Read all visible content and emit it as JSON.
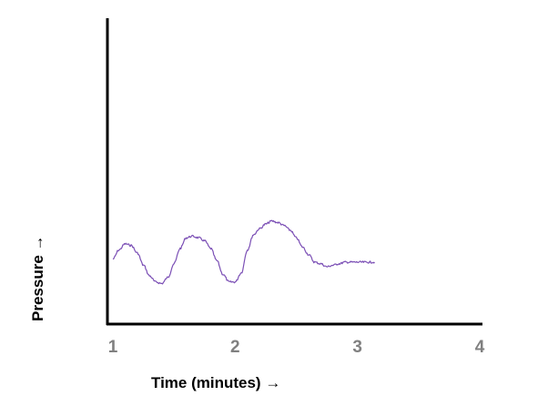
{
  "chart_data": {
    "type": "line",
    "xlabel": "Time (minutes) →",
    "ylabel": "Pressure  →",
    "xlim": [
      1,
      4
    ],
    "ylim": [
      0,
      10
    ],
    "x_ticks": [
      "1",
      "2",
      "3",
      "4"
    ],
    "y_ticks": [],
    "grid": false,
    "colors": {
      "series": "#7b4fb5",
      "axis": "#000000",
      "tick_label": "#808080",
      "axis_label": "#000000"
    },
    "series": [
      {
        "x": [
          1.0,
          1.05,
          1.1,
          1.15,
          1.2,
          1.25,
          1.3,
          1.35,
          1.4,
          1.45,
          1.5,
          1.55,
          1.6,
          1.65,
          1.7,
          1.75,
          1.8,
          1.85,
          1.9,
          1.95,
          2.0,
          2.05,
          2.1,
          2.15,
          2.2,
          2.25,
          2.3,
          2.35,
          2.4,
          2.45,
          2.5,
          2.55,
          2.6,
          2.65,
          2.7,
          2.75,
          2.8,
          2.85,
          2.9,
          2.95,
          3.0,
          3.05,
          3.1,
          3.14
        ],
        "y": [
          2.1,
          2.4,
          2.6,
          2.55,
          2.3,
          1.9,
          1.55,
          1.35,
          1.3,
          1.5,
          1.95,
          2.45,
          2.8,
          2.85,
          2.8,
          2.7,
          2.45,
          2.05,
          1.6,
          1.35,
          1.35,
          1.65,
          2.4,
          2.9,
          3.1,
          3.25,
          3.35,
          3.3,
          3.2,
          3.05,
          2.8,
          2.5,
          2.25,
          2.0,
          1.95,
          1.85,
          1.9,
          1.95,
          2.0,
          2.0,
          2.0,
          2.0,
          2.0,
          2.0
        ]
      }
    ]
  }
}
